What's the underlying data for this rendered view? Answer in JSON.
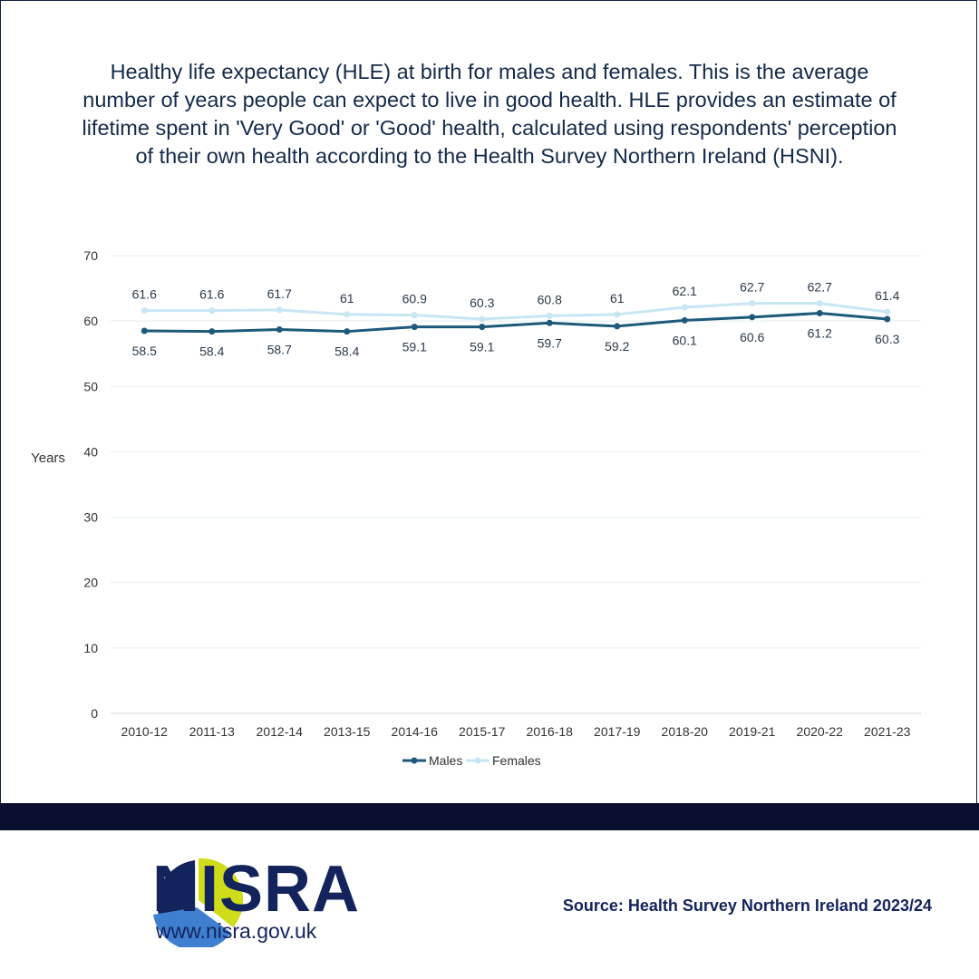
{
  "chart_data": {
    "type": "line",
    "title": "Healthy life expectancy (HLE) at birth for males and females. This is the average number of years people can expect to live in good health. HLE provides an estimate of lifetime spent in 'Very Good' or 'Good' health, calculated using respondents' perception of their own health according to the Health Survey Northern Ireland (HSNI).",
    "xlabel": "",
    "ylabel": "Years",
    "ylim": [
      0,
      70
    ],
    "yticks": [
      0,
      10,
      20,
      30,
      40,
      50,
      60,
      70
    ],
    "grid": true,
    "legend_position": "bottom",
    "categories": [
      "2010-12",
      "2011-13",
      "2012-14",
      "2013-15",
      "2014-16",
      "2015-17",
      "2016-18",
      "2017-19",
      "2018-20",
      "2019-21",
      "2020-22",
      "2021-23"
    ],
    "series": [
      {
        "name": "Males",
        "color": "#1d5a7a",
        "label_position": "below",
        "values": [
          58.5,
          58.4,
          58.7,
          58.4,
          59.1,
          59.1,
          59.7,
          59.2,
          60.1,
          60.6,
          61.2,
          60.3
        ]
      },
      {
        "name": "Females",
        "color": "#c8e6f3",
        "label_position": "above",
        "values": [
          61.6,
          61.6,
          61.7,
          61,
          60.9,
          60.3,
          60.8,
          61,
          62.1,
          62.7,
          62.7,
          61.4
        ]
      }
    ]
  },
  "footer": {
    "logo_text": "NISRA",
    "url": "www.nisra.gov.uk",
    "source": "Source: Health Survey Northern Ireland 2023/24"
  },
  "colors": {
    "band": "#0a0f2e",
    "brand_navy": "#13235b",
    "logo_yellow": "#cfdc1a",
    "logo_blue": "#3f7fd0"
  }
}
